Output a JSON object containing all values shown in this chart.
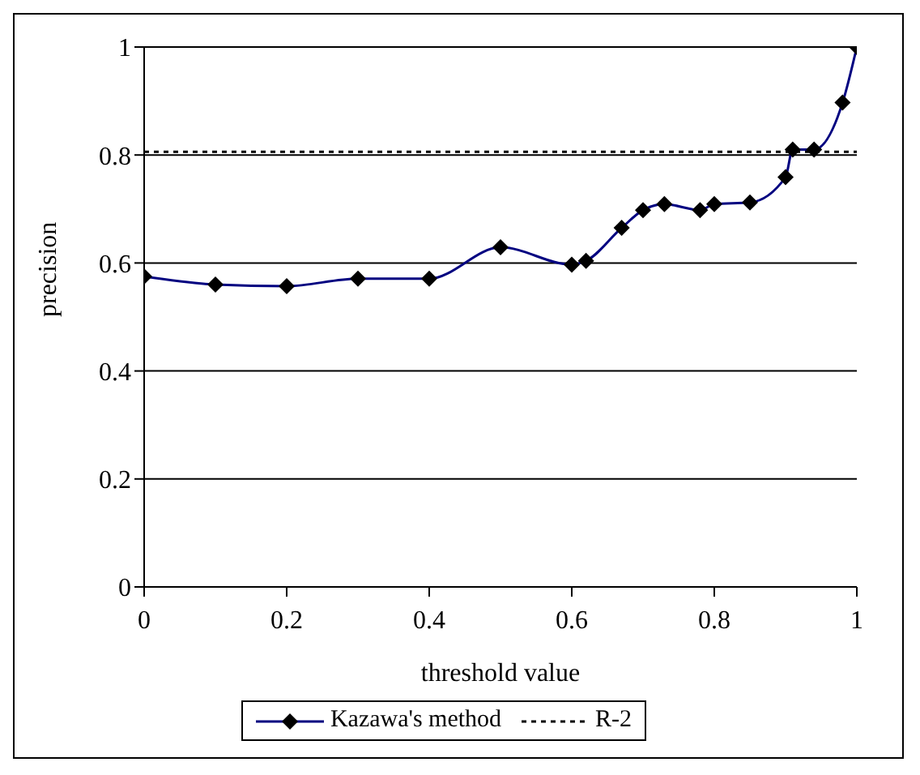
{
  "chart_data": {
    "type": "line",
    "xlabel": "threshold value",
    "ylabel": "precision",
    "xlim": [
      0,
      1
    ],
    "xticks": [
      0,
      0.2,
      0.4,
      0.6,
      0.8,
      1
    ],
    "ylim": [
      0,
      1
    ],
    "yticks": [
      0,
      0.2,
      0.4,
      0.6,
      0.8,
      1
    ],
    "grid": "y",
    "legend": "bottom",
    "series": [
      {
        "name": "Kazawa's method",
        "color": "#000080",
        "marker": "diamond",
        "line_style": "solid",
        "x": [
          0,
          0.1,
          0.2,
          0.3,
          0.4,
          0.5,
          0.6,
          0.62,
          0.67,
          0.7,
          0.73,
          0.78,
          0.8,
          0.85,
          0.9,
          0.91,
          0.94,
          0.98,
          1
        ],
        "values": [
          0.575,
          0.56,
          0.557,
          0.571,
          0.571,
          0.629,
          0.597,
          0.604,
          0.665,
          0.698,
          0.709,
          0.698,
          0.709,
          0.712,
          0.759,
          0.81,
          0.81,
          0.897,
          1.0
        ]
      },
      {
        "name": "R-2",
        "color": "#000000",
        "marker": "none",
        "line_style": "dotted",
        "x": [
          0,
          1
        ],
        "values": [
          0.806,
          0.806
        ]
      }
    ]
  }
}
